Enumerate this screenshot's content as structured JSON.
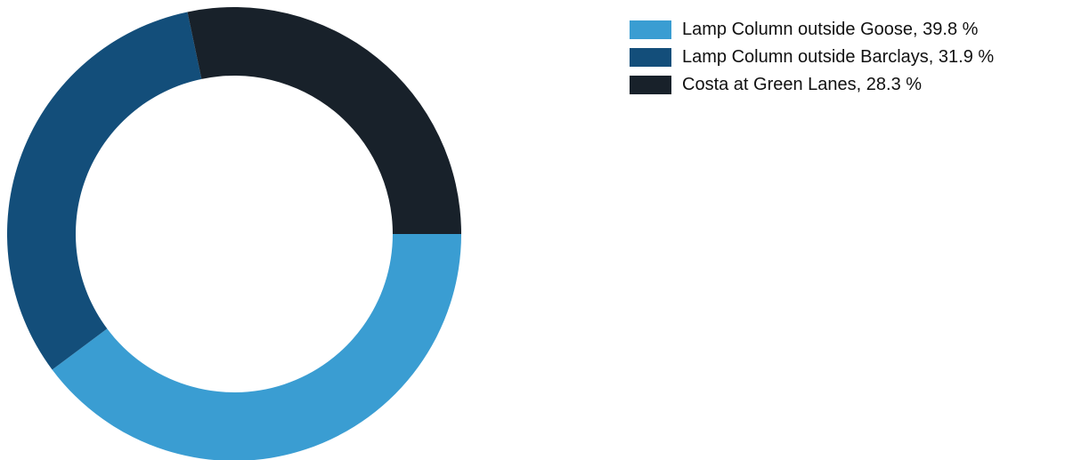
{
  "chart_data": {
    "type": "pie",
    "variant": "donut",
    "categories": [
      "Lamp Column outside Goose",
      "Lamp Column outside Barclays",
      "Costa at Green Lanes"
    ],
    "values": [
      39.8,
      31.9,
      28.3
    ],
    "unit": "%",
    "colors": [
      "#3a9dd2",
      "#134e7a",
      "#18212a"
    ],
    "legend": {
      "placement": "top-right",
      "entries": [
        "Lamp Column outside Goose, 39.8 %",
        "Lamp Column outside Barclays, 31.9 %",
        "Costa at Green Lanes, 28.3 %"
      ]
    }
  }
}
